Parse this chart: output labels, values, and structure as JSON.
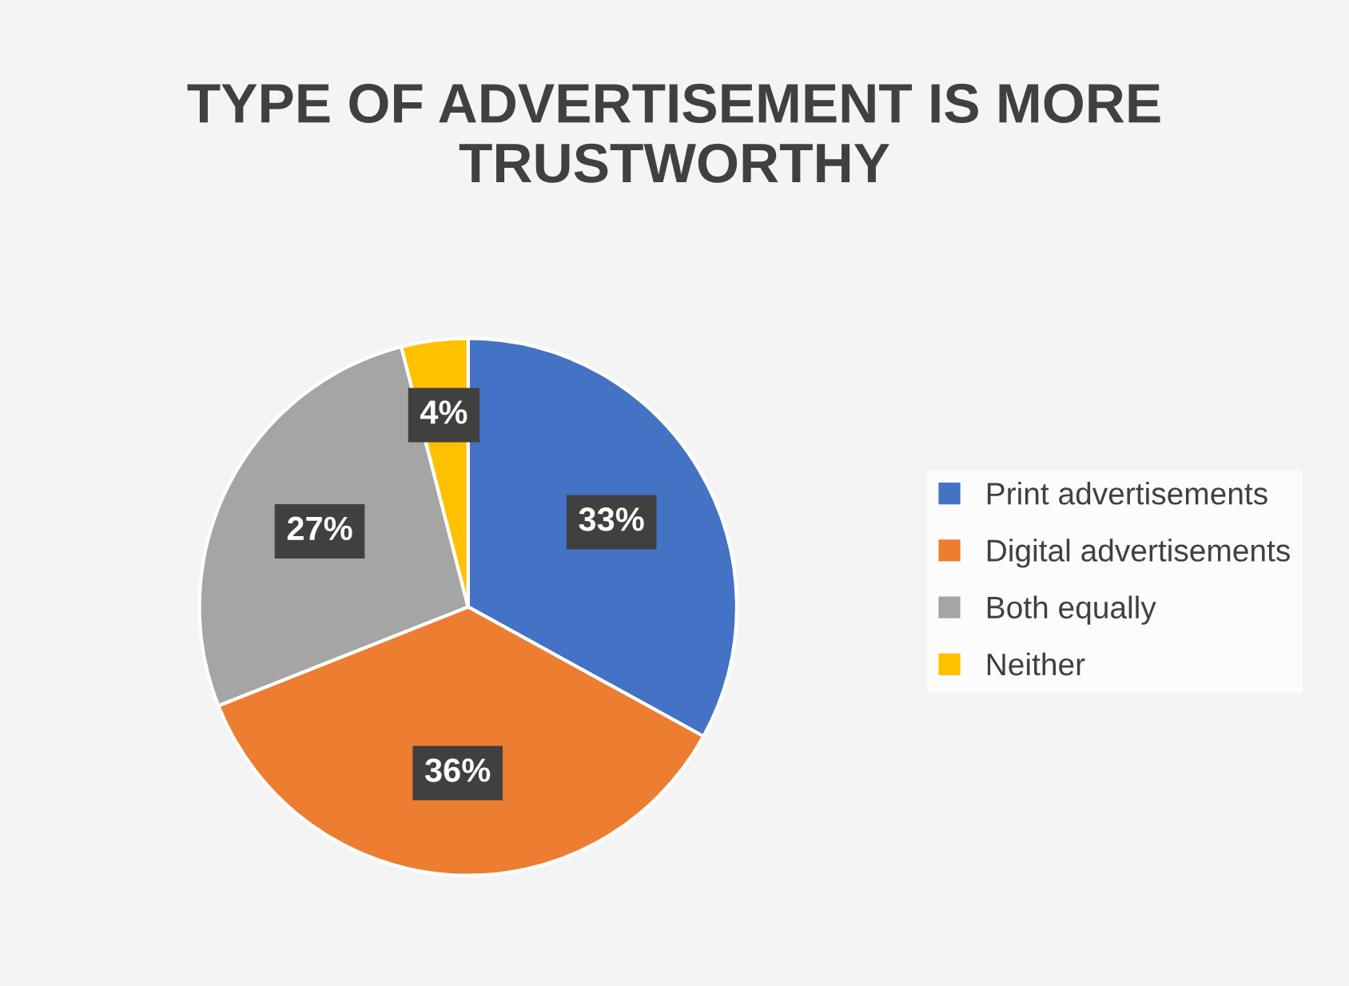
{
  "chart_data": {
    "type": "pie",
    "title": "TYPE OF ADVERTISEMENT IS MORE TRUSTWORTHY",
    "categories": [
      "Print advertisements",
      "Digital advertisements",
      "Both equally",
      "Neither"
    ],
    "values": [
      33,
      36,
      27,
      4
    ],
    "colors": [
      "#4472c4",
      "#ed7d31",
      "#a5a5a5",
      "#ffc000"
    ],
    "value_labels": [
      "33%",
      "36%",
      "27%",
      "4%"
    ],
    "legend": "right"
  }
}
